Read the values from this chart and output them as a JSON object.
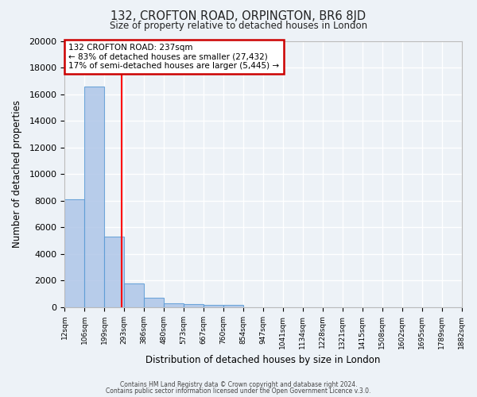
{
  "title": "132, CROFTON ROAD, ORPINGTON, BR6 8JD",
  "subtitle": "Size of property relative to detached houses in London",
  "xlabel": "Distribution of detached houses by size in London",
  "ylabel": "Number of detached properties",
  "bar_values": [
    8100,
    16600,
    5300,
    1750,
    700,
    300,
    200,
    150,
    150,
    0,
    0,
    0,
    0,
    0,
    0,
    0,
    0,
    0,
    0,
    0
  ],
  "bin_labels": [
    "12sqm",
    "106sqm",
    "199sqm",
    "293sqm",
    "386sqm",
    "480sqm",
    "573sqm",
    "667sqm",
    "760sqm",
    "854sqm",
    "947sqm",
    "1041sqm",
    "1134sqm",
    "1228sqm",
    "1321sqm",
    "1415sqm",
    "1508sqm",
    "1602sqm",
    "1695sqm",
    "1789sqm",
    "1882sqm"
  ],
  "bar_color": "#aec6e8",
  "bar_edge_color": "#5b9bd5",
  "red_line_x": 2.38,
  "annotation_title": "132 CROFTON ROAD: 237sqm",
  "annotation_line1": "← 83% of detached houses are smaller (27,432)",
  "annotation_line2": "17% of semi-detached houses are larger (5,445) →",
  "annotation_box_color": "#ffffff",
  "annotation_box_edge": "#cc0000",
  "ylim": [
    0,
    20000
  ],
  "yticks": [
    0,
    2000,
    4000,
    6000,
    8000,
    10000,
    12000,
    14000,
    16000,
    18000,
    20000
  ],
  "footer1": "Contains HM Land Registry data © Crown copyright and database right 2024.",
  "footer2": "Contains public sector information licensed under the Open Government Licence v.3.0.",
  "bg_color": "#edf2f7",
  "plot_bg_color": "#edf2f7",
  "grid_color": "#ffffff"
}
